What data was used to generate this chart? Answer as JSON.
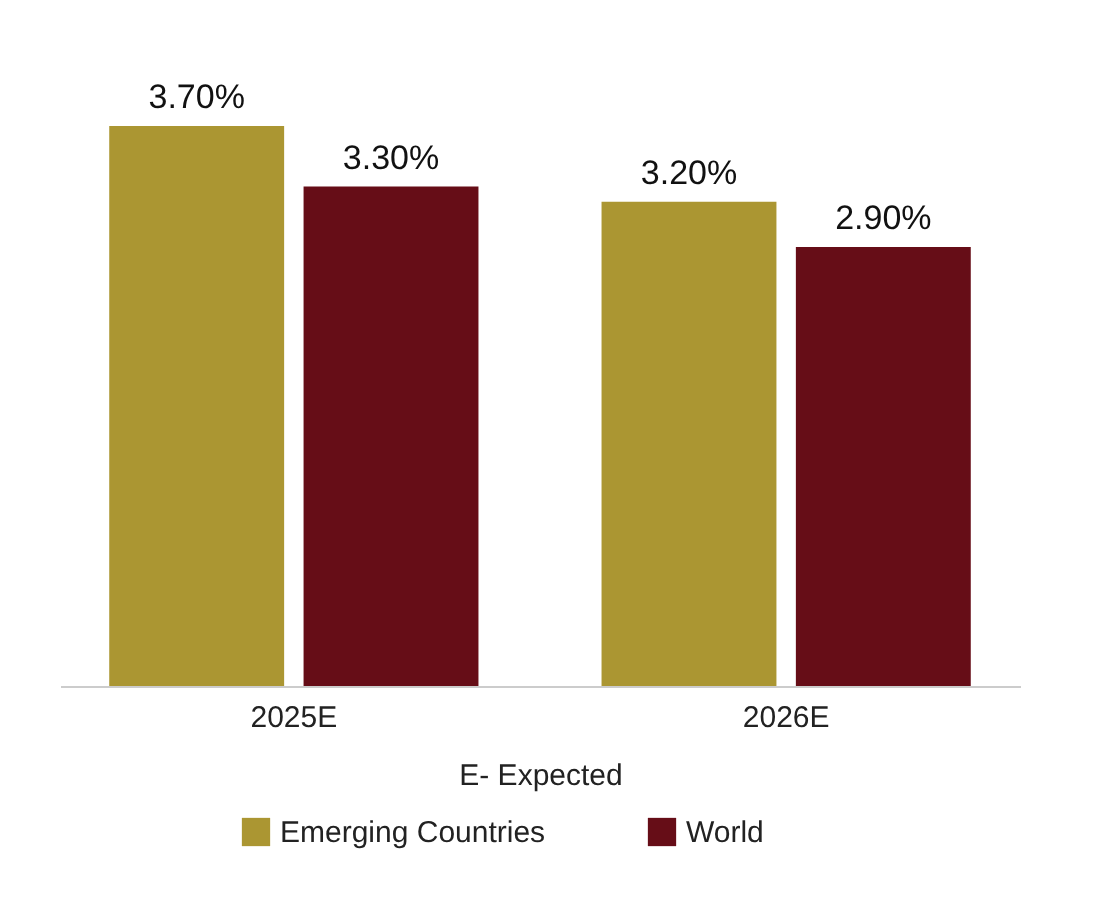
{
  "chart_data": {
    "type": "bar",
    "categories": [
      "2025E",
      "2026E"
    ],
    "series": [
      {
        "name": "Emerging Countries",
        "color": "#ab9632",
        "values": [
          3.7,
          3.2
        ],
        "value_labels": [
          "3.70%",
          "3.20%"
        ]
      },
      {
        "name": "World",
        "color": "#660d17",
        "values": [
          3.3,
          2.9
        ],
        "value_labels": [
          "3.30%",
          "2.90%"
        ]
      }
    ],
    "annotations": [
      "E- Expected"
    ],
    "legend": "bottom"
  }
}
